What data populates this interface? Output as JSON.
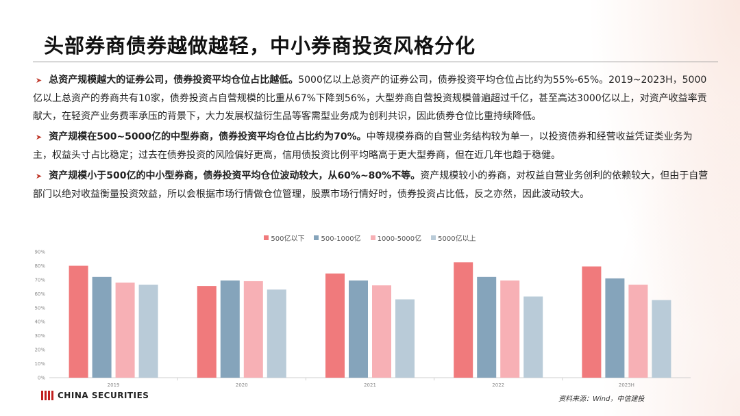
{
  "slide": {
    "title": "头部券商债券越做越轻，中小券商投资风格分化",
    "source": "资料来源：Wind，中信建投",
    "logo_text": "CHINA SECURITIES"
  },
  "bullets": [
    {
      "bold": "总资产规模越大的证券公司，债券投资平均仓位占比越低。",
      "text": "5000亿以上总资产的证券公司，债券投资平均仓位占比约为55%-65%。2019~2023H，5000亿以上总资产的券商共有10家，债券投资占自营规模的比重从67%下降到56%，大型券商自营投资规模普遍超过千亿，甚至高达3000亿以上，对资产收益率贡献大，在轻资产业务费率承压的背景下，大力发展权益衍生品等客需型业务成为创利共识，因此债券仓位比重持续降低。"
    },
    {
      "bold": "资产规模在500~5000亿的中型券商，债券投资平均仓位占比约为70%。",
      "text": "中等规模券商的自营业务结构较为单一，以投资债券和经营收益凭证类业务为主，权益头寸占比稳定；过去在债券投资的风险偏好更高，信用债投资比例平均略高于更大型券商，但在近几年也趋于稳健。"
    },
    {
      "bold": "资产规模小于500亿的中小型券商，债券投资平均仓位波动较大，从60%~80%不等。",
      "text": "资产规模较小的券商，对权益自营业务创利的依赖较大，但由于自营部门以绝对收益衡量投资效益，所以会根据市场行情做仓位管理，股票市场行情好时，债券投资占比低，反之亦然，因此波动较大。"
    }
  ],
  "chart_data": {
    "type": "bar",
    "categories": [
      "2019",
      "2020",
      "2021",
      "2022",
      "2023H"
    ],
    "series": [
      {
        "name": "500亿以下",
        "color": "#f07a7c",
        "values": [
          80,
          65.5,
          74.5,
          82.5,
          79.5
        ]
      },
      {
        "name": "500-1000亿",
        "color": "#85a4bb",
        "values": [
          72,
          69.5,
          69.5,
          72,
          71
        ]
      },
      {
        "name": "1000-5000亿",
        "color": "#f7b0b5",
        "values": [
          68,
          69,
          66,
          69.5,
          66.5
        ]
      },
      {
        "name": "5000亿以上",
        "color": "#b9cbd8",
        "values": [
          66.5,
          63,
          56,
          58,
          55.5
        ]
      }
    ],
    "yticks": [
      "0%",
      "10%",
      "20%",
      "30%",
      "40%",
      "50%",
      "60%",
      "70%",
      "80%",
      "90%"
    ],
    "ylim": [
      0,
      90
    ],
    "legend_position": "top-center",
    "grid": false
  }
}
